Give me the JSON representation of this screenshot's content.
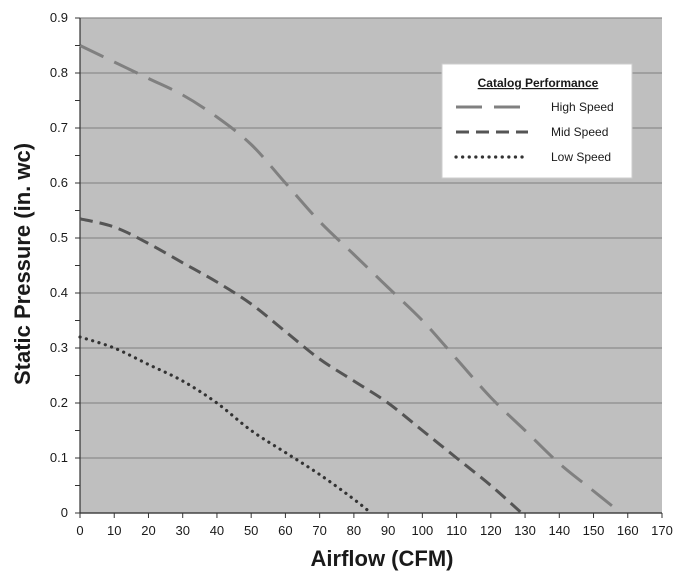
{
  "chart_data": {
    "type": "line",
    "xlabel": "Airflow (CFM)",
    "ylabel": "Static Pressure (in. wc)",
    "xlim": [
      0,
      170
    ],
    "ylim": [
      0,
      0.9
    ],
    "x_ticks": [
      0,
      10,
      20,
      30,
      40,
      50,
      60,
      70,
      80,
      90,
      100,
      110,
      120,
      130,
      140,
      150,
      160,
      170
    ],
    "y_ticks": [
      0,
      0.1,
      0.2,
      0.3,
      0.4,
      0.5,
      0.6,
      0.7,
      0.8,
      0.9
    ],
    "y_tick_labels": [
      "0",
      "0.1",
      "0.2",
      "0.3",
      "0.4",
      "0.5",
      "0.6",
      "0.7",
      "0.8",
      "0.9"
    ],
    "grid": "horizontal",
    "legend": {
      "title": "Catalog Performance",
      "placement": "top-right"
    },
    "series": [
      {
        "name": "High Speed",
        "color": "#808080",
        "style": "long-dash",
        "x": [
          0,
          10,
          20,
          30,
          40,
          50,
          60,
          70,
          80,
          90,
          100,
          110,
          120,
          130,
          140,
          150,
          158
        ],
        "y": [
          0.85,
          0.82,
          0.79,
          0.76,
          0.72,
          0.67,
          0.6,
          0.53,
          0.47,
          0.41,
          0.35,
          0.28,
          0.21,
          0.15,
          0.09,
          0.04,
          0
        ]
      },
      {
        "name": "Mid Speed",
        "color": "#555555",
        "style": "dash",
        "x": [
          0,
          10,
          20,
          30,
          40,
          50,
          60,
          70,
          80,
          90,
          100,
          110,
          120,
          129
        ],
        "y": [
          0.535,
          0.52,
          0.49,
          0.455,
          0.42,
          0.38,
          0.33,
          0.28,
          0.24,
          0.2,
          0.15,
          0.1,
          0.05,
          0
        ]
      },
      {
        "name": "Low Speed",
        "color": "#333333",
        "style": "dotted",
        "x": [
          0,
          10,
          20,
          30,
          40,
          50,
          60,
          70,
          80,
          85
        ],
        "y": [
          0.32,
          0.3,
          0.27,
          0.24,
          0.2,
          0.15,
          0.11,
          0.07,
          0.025,
          0
        ]
      }
    ]
  },
  "colors": {
    "plot_background": "#bfbfbf",
    "grid": "#8c8c8c",
    "axis": "#333333"
  }
}
